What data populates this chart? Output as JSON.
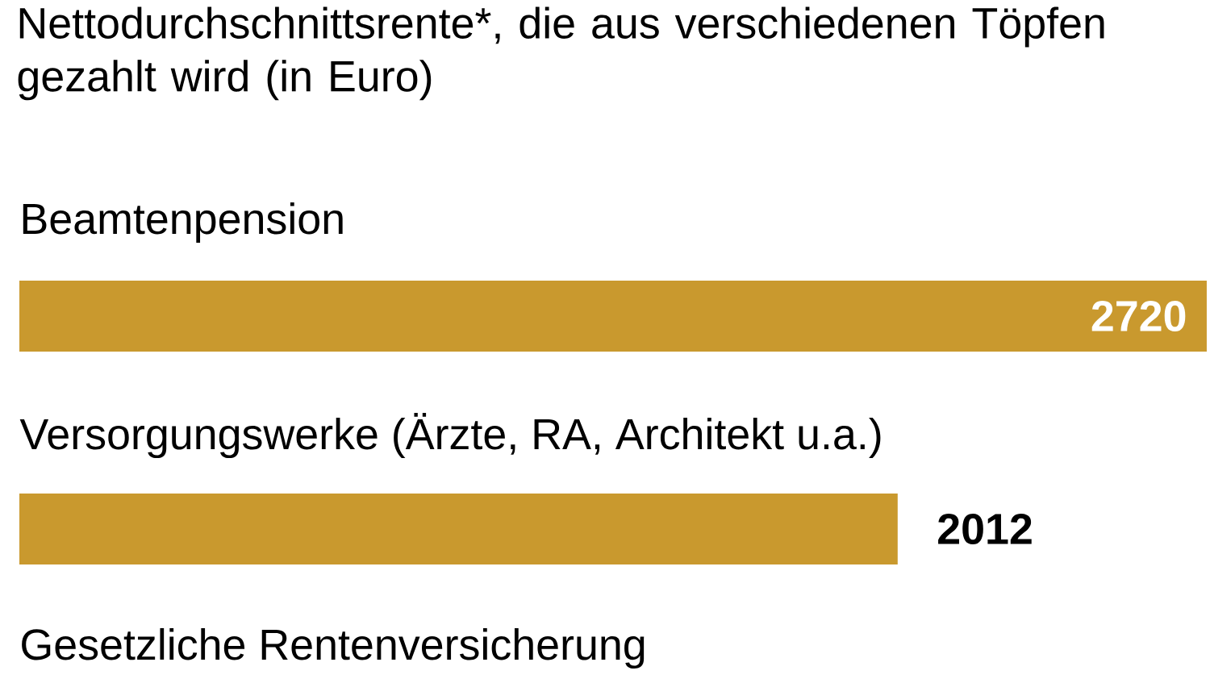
{
  "chart_data": {
    "type": "bar",
    "orientation": "horizontal",
    "title": "Nettodurchschnittsrente*, die aus verschiedenen Töpfen gezahlt wird (in Euro)",
    "categories": [
      "Beamtenpension",
      "Versorgungswerke (Ärzte, RA, Architekt u.a.)",
      "Gesetzliche Rentenversicherung"
    ],
    "values": [
      2720,
      2012,
      null
    ],
    "color": "#c9992e",
    "data_labels": true
  }
}
